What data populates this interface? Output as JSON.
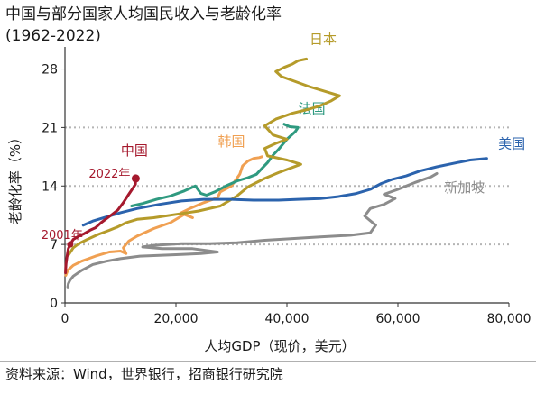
{
  "title_line1": "中国与部分国家人均国民收入与老龄化率",
  "title_line2": "(1962-2022)",
  "source": "资料来源：Wind，世界银行，招商银行研究院",
  "chart_data": {
    "type": "line",
    "xlabel": "人均GDP（现价，美元）",
    "ylabel": "老龄化率（%）",
    "xlim": [
      0,
      80000
    ],
    "ylim": [
      0,
      30
    ],
    "x_ticks": [
      0,
      20000,
      40000,
      60000,
      80000
    ],
    "x_tick_labels": [
      "0",
      "20,000",
      "40,000",
      "60,000",
      "80,000"
    ],
    "y_ticks": [
      0,
      7,
      14,
      21,
      28
    ],
    "y_tick_labels": [
      "0",
      "7",
      "14",
      "21",
      "28"
    ],
    "reference_lines_y": [
      7,
      14,
      21
    ],
    "grid": "dotted horizontal at 7, 14, 21",
    "series": [
      {
        "name": "中国",
        "color": "#a5192d",
        "label_point": [
          12500,
          17.7
        ],
        "points": [
          [
            90,
            3.6
          ],
          [
            150,
            4.2
          ],
          [
            200,
            4.7
          ],
          [
            350,
            5.5
          ],
          [
            600,
            6.5
          ],
          [
            950,
            7.0
          ],
          [
            1500,
            7.6
          ],
          [
            2500,
            8.0
          ],
          [
            3500,
            8.3
          ],
          [
            4500,
            8.7
          ],
          [
            5500,
            9.0
          ],
          [
            6500,
            9.6
          ],
          [
            7500,
            10.1
          ],
          [
            8500,
            10.6
          ],
          [
            9500,
            11.1
          ],
          [
            10500,
            12.0
          ],
          [
            11500,
            13.0
          ],
          [
            12700,
            14.2
          ],
          [
            12750,
            14.9
          ]
        ],
        "annotations": [
          {
            "text": "2022年",
            "x": 12750,
            "y": 14.9
          },
          {
            "text": "2001年",
            "x": 950,
            "y": 7.0
          }
        ]
      },
      {
        "name": "日本",
        "color": "#b59b2a",
        "label_point": [
          46500,
          31.0
        ],
        "points": [
          [
            600,
            5.7
          ],
          [
            900,
            6.0
          ],
          [
            1500,
            6.6
          ],
          [
            2500,
            7.1
          ],
          [
            4000,
            7.6
          ],
          [
            6000,
            8.2
          ],
          [
            8000,
            8.7
          ],
          [
            9500,
            9.1
          ],
          [
            11000,
            9.6
          ],
          [
            13000,
            10.0
          ],
          [
            16000,
            10.2
          ],
          [
            20000,
            10.6
          ],
          [
            24000,
            11.0
          ],
          [
            28000,
            11.6
          ],
          [
            31000,
            12.8
          ],
          [
            33000,
            13.9
          ],
          [
            36000,
            14.9
          ],
          [
            38500,
            15.6
          ],
          [
            40500,
            16.1
          ],
          [
            42500,
            16.6
          ],
          [
            40000,
            17.1
          ],
          [
            36500,
            17.6
          ],
          [
            36000,
            18.5
          ],
          [
            38000,
            19.1
          ],
          [
            40000,
            19.6
          ],
          [
            37500,
            20.1
          ],
          [
            36000,
            21.2
          ],
          [
            38000,
            22.0
          ],
          [
            41000,
            22.7
          ],
          [
            44000,
            23.2
          ],
          [
            46000,
            23.6
          ],
          [
            48000,
            24.2
          ],
          [
            49500,
            24.8
          ],
          [
            47000,
            25.3
          ],
          [
            44000,
            25.9
          ],
          [
            41500,
            26.5
          ],
          [
            39000,
            27.1
          ],
          [
            38000,
            27.7
          ],
          [
            39500,
            28.2
          ],
          [
            41000,
            28.6
          ],
          [
            42000,
            29.0
          ],
          [
            43500,
            29.2
          ]
        ]
      },
      {
        "name": "法国",
        "color": "#2f9a80",
        "label_point": [
          44500,
          22.7
        ],
        "points": [
          [
            12000,
            11.6
          ],
          [
            14000,
            11.9
          ],
          [
            16500,
            12.4
          ],
          [
            19000,
            12.8
          ],
          [
            21500,
            13.4
          ],
          [
            23500,
            14.0
          ],
          [
            24500,
            13.1
          ],
          [
            25500,
            12.9
          ],
          [
            27000,
            13.3
          ],
          [
            29000,
            14.0
          ],
          [
            31000,
            14.6
          ],
          [
            33000,
            15.0
          ],
          [
            34500,
            15.4
          ],
          [
            35500,
            16.1
          ],
          [
            36500,
            16.8
          ],
          [
            37500,
            17.7
          ],
          [
            38500,
            18.4
          ],
          [
            40000,
            19.6
          ],
          [
            41500,
            20.5
          ],
          [
            42000,
            21.0
          ],
          [
            40500,
            21.1
          ],
          [
            39500,
            21.4
          ]
        ]
      },
      {
        "name": "韩国",
        "color": "#f0a052",
        "label_point": [
          30000,
          18.8
        ],
        "points": [
          [
            150,
            3.3
          ],
          [
            500,
            3.9
          ],
          [
            1500,
            4.5
          ],
          [
            3000,
            5.0
          ],
          [
            5500,
            5.6
          ],
          [
            8000,
            6.1
          ],
          [
            10000,
            6.2
          ],
          [
            11000,
            5.9
          ],
          [
            10500,
            6.6
          ],
          [
            11500,
            7.4
          ],
          [
            13000,
            8.0
          ],
          [
            16000,
            8.9
          ],
          [
            19000,
            9.6
          ],
          [
            21500,
            10.6
          ],
          [
            23000,
            10.2
          ],
          [
            21000,
            10.8
          ],
          [
            22500,
            11.3
          ],
          [
            25000,
            12.0
          ],
          [
            27500,
            12.6
          ],
          [
            28000,
            13.3
          ],
          [
            30000,
            14.0
          ],
          [
            31500,
            15.4
          ],
          [
            32000,
            16.4
          ],
          [
            33000,
            17.0
          ],
          [
            34000,
            17.3
          ],
          [
            35000,
            17.4
          ],
          [
            35500,
            17.5
          ]
        ]
      },
      {
        "name": "美国",
        "color": "#2b63ad",
        "label_point": [
          80500,
          18.5
        ],
        "points": [
          [
            3300,
            9.3
          ],
          [
            5000,
            9.8
          ],
          [
            7500,
            10.3
          ],
          [
            10000,
            10.8
          ],
          [
            13000,
            11.3
          ],
          [
            17000,
            11.8
          ],
          [
            21000,
            12.2
          ],
          [
            25000,
            12.4
          ],
          [
            30000,
            12.4
          ],
          [
            34000,
            12.3
          ],
          [
            36000,
            12.3
          ],
          [
            38500,
            12.3
          ],
          [
            42000,
            12.4
          ],
          [
            46000,
            12.5
          ],
          [
            49000,
            12.7
          ],
          [
            52500,
            13.1
          ],
          [
            55000,
            13.6
          ],
          [
            57000,
            14.3
          ],
          [
            59000,
            14.8
          ],
          [
            61500,
            15.2
          ],
          [
            64000,
            15.8
          ],
          [
            67000,
            16.3
          ],
          [
            70000,
            16.7
          ],
          [
            73000,
            17.1
          ],
          [
            76000,
            17.3
          ]
        ]
      },
      {
        "name": "新加坡",
        "color": "#8c8c8c",
        "label_point": [
          72000,
          13.3
        ],
        "points": [
          [
            500,
            1.9
          ],
          [
            600,
            2.3
          ],
          [
            900,
            2.7
          ],
          [
            1500,
            3.2
          ],
          [
            3000,
            3.9
          ],
          [
            5000,
            4.6
          ],
          [
            7500,
            5.0
          ],
          [
            10000,
            5.3
          ],
          [
            13500,
            5.6
          ],
          [
            17000,
            5.7
          ],
          [
            21000,
            5.8
          ],
          [
            24500,
            5.9
          ],
          [
            27500,
            6.1
          ],
          [
            23000,
            6.5
          ],
          [
            17500,
            6.5
          ],
          [
            14000,
            6.7
          ],
          [
            16000,
            6.9
          ],
          [
            21000,
            7.1
          ],
          [
            26000,
            7.1
          ],
          [
            31000,
            7.2
          ],
          [
            36000,
            7.5
          ],
          [
            41000,
            7.7
          ],
          [
            46000,
            7.9
          ],
          [
            51500,
            8.1
          ],
          [
            55000,
            8.4
          ],
          [
            56000,
            9.3
          ],
          [
            54000,
            10.4
          ],
          [
            55000,
            11.3
          ],
          [
            57500,
            11.8
          ],
          [
            59500,
            12.5
          ],
          [
            57500,
            13.0
          ],
          [
            60000,
            13.6
          ],
          [
            63000,
            14.4
          ],
          [
            66000,
            15.1
          ],
          [
            67000,
            15.5
          ]
        ]
      }
    ]
  }
}
